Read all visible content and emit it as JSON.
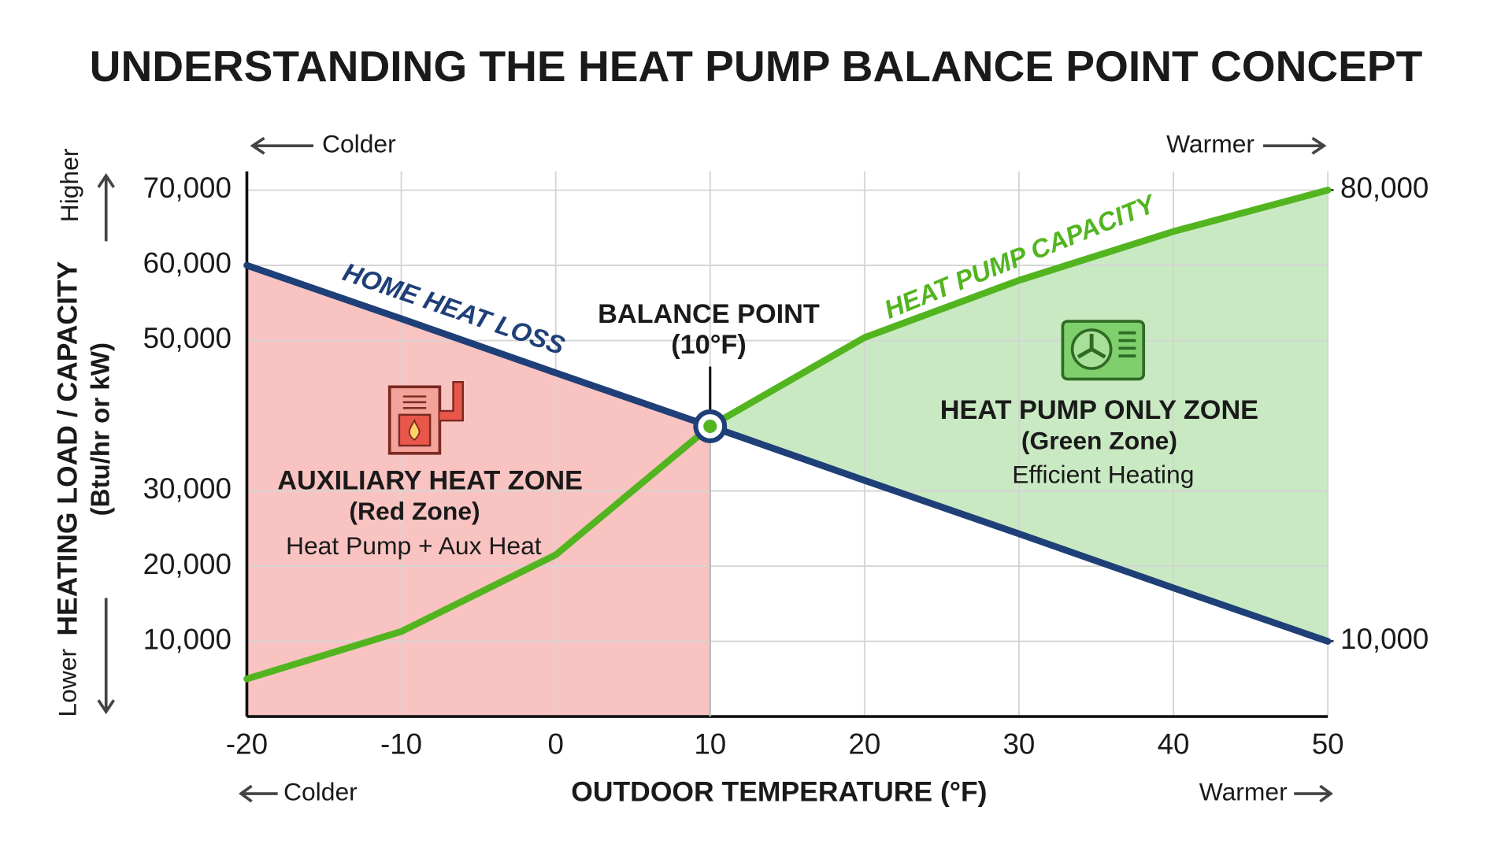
{
  "chart_data": {
    "type": "line",
    "title": "UNDERSTANDING THE HEAT PUMP BALANCE POINT CONCEPT",
    "x_axis_label": "OUTDOOR TEMPERATURE (°F)",
    "y_axis_label": "HEATING LOAD / CAPACITY",
    "y_axis_unit": "(Btu/hr or kW)",
    "direction_labels": {
      "colder": "Colder",
      "warmer": "Warmer",
      "higher": "Higher",
      "lower": "Lower"
    },
    "x": [
      -20,
      -10,
      0,
      10,
      20,
      30,
      40,
      50
    ],
    "series": [
      {
        "name": "HOME HEAT LOSS",
        "color": "#1f3f78",
        "values": [
          60000,
          52900,
          45700,
          38600,
          31400,
          24300,
          17100,
          10000
        ]
      },
      {
        "name": "HEAT PUMP CAPACITY",
        "color": "#52b520",
        "values": [
          5000,
          11300,
          21500,
          38600,
          50400,
          58000,
          64500,
          70000
        ]
      }
    ],
    "xlim": [
      -20,
      50
    ],
    "xticks": [
      -20,
      -10,
      0,
      10,
      20,
      30,
      40,
      50
    ],
    "ylim": [
      0,
      72500
    ],
    "yticks": [
      {
        "value": 10000,
        "label": "10,000"
      },
      {
        "value": 20000,
        "label": "20,000"
      },
      {
        "value": 30000,
        "label": "30,000"
      },
      {
        "value": 50000,
        "label": "50,000"
      },
      {
        "value": 60000,
        "label": "60,000"
      },
      {
        "value": 70000,
        "label": "70,000"
      }
    ],
    "y2lim": [
      -1700,
      82900
    ],
    "y2ticks": [
      {
        "value": 10000,
        "label": "10,000"
      },
      {
        "value": 80000,
        "label": "80,000"
      }
    ],
    "grid": true,
    "zones": [
      {
        "title": "AUXILIARY HEAT ZONE",
        "subtitle": "(Red Zone)",
        "description": "Heat Pump + Aux Heat",
        "color": "#f9c3c1",
        "x_range": [
          -20,
          10
        ]
      },
      {
        "title": "HEAT PUMP ONLY ZONE",
        "subtitle": "(Green Zone)",
        "description": "Efficient Heating",
        "color": "#c9e9c3",
        "x_range": [
          10,
          50
        ]
      }
    ],
    "balance_point": {
      "label": "BALANCE POINT",
      "sublabel": "(10°F)",
      "x": 10,
      "y": 38600
    }
  }
}
